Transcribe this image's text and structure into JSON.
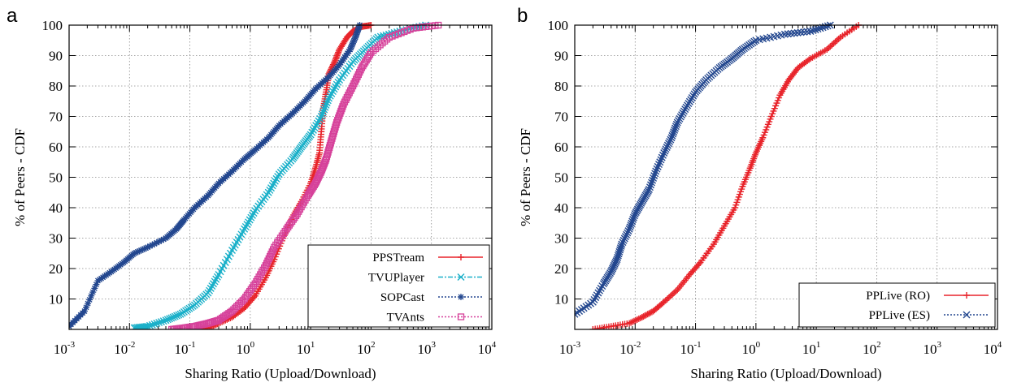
{
  "chart_data": [
    {
      "type": "line",
      "panel_letter": "a",
      "xlabel": "Sharing Ratio (Upload/Download)",
      "ylabel": "% of Peers - CDF",
      "x_scale": "log",
      "xlim": [
        0.001,
        10000
      ],
      "ylim": [
        0,
        100
      ],
      "x_tick_labels": [
        {
          "base": "10",
          "exp": "-3"
        },
        {
          "base": "10",
          "exp": "-2"
        },
        {
          "base": "10",
          "exp": "-1"
        },
        {
          "base": "10",
          "exp": "0"
        },
        {
          "base": "10",
          "exp": "1"
        },
        {
          "base": "10",
          "exp": "2"
        },
        {
          "base": "10",
          "exp": "3"
        },
        {
          "base": "10",
          "exp": "4"
        }
      ],
      "y_tick_labels": [
        "10",
        "20",
        "30",
        "40",
        "50",
        "60",
        "70",
        "80",
        "90",
        "100"
      ],
      "grid": true,
      "legend_position": "bottom-right",
      "series": [
        {
          "name": "PPSTream",
          "color": "#e8242b",
          "marker": "plus",
          "dash": "solid",
          "points": [
            [
              0.15,
              0
            ],
            [
              0.2,
              0.5
            ],
            [
              0.3,
              2
            ],
            [
              0.5,
              4
            ],
            [
              0.8,
              7
            ],
            [
              1.2,
              11
            ],
            [
              1.8,
              17
            ],
            [
              2.5,
              23
            ],
            [
              3.5,
              30
            ],
            [
              5,
              37
            ],
            [
              7,
              42
            ],
            [
              10,
              48
            ],
            [
              12,
              53
            ],
            [
              14,
              58
            ],
            [
              15,
              65
            ],
            [
              16,
              72
            ],
            [
              18,
              78
            ],
            [
              20,
              84
            ],
            [
              25,
              88
            ],
            [
              30,
              92
            ],
            [
              40,
              96
            ],
            [
              50,
              98
            ],
            [
              70,
              99.5
            ],
            [
              100,
              100
            ]
          ]
        },
        {
          "name": "TVUPlayer",
          "color": "#1ab0c9",
          "marker": "cross",
          "dash": "6,2,2,2",
          "points": [
            [
              0.012,
              0.5
            ],
            [
              0.02,
              1
            ],
            [
              0.04,
              3
            ],
            [
              0.07,
              5
            ],
            [
              0.12,
              8
            ],
            [
              0.2,
              12
            ],
            [
              0.3,
              18
            ],
            [
              0.5,
              26
            ],
            [
              0.8,
              33
            ],
            [
              1.2,
              39
            ],
            [
              2,
              45
            ],
            [
              3,
              51
            ],
            [
              5,
              56
            ],
            [
              7,
              60
            ],
            [
              10,
              64
            ],
            [
              15,
              70
            ],
            [
              20,
              76
            ],
            [
              30,
              82
            ],
            [
              50,
              88
            ],
            [
              80,
              92
            ],
            [
              130,
              96
            ],
            [
              300,
              98
            ],
            [
              800,
              100
            ]
          ]
        },
        {
          "name": "SOPCast",
          "color": "#23478f",
          "marker": "star",
          "dash": "2,2",
          "points": [
            [
              0.001,
              1
            ],
            [
              0.0018,
              6
            ],
            [
              0.003,
              16
            ],
            [
              0.005,
              19
            ],
            [
              0.008,
              22
            ],
            [
              0.012,
              25
            ],
            [
              0.02,
              27
            ],
            [
              0.04,
              30
            ],
            [
              0.06,
              33
            ],
            [
              0.08,
              36
            ],
            [
              0.12,
              40
            ],
            [
              0.2,
              44
            ],
            [
              0.3,
              48
            ],
            [
              0.5,
              52
            ],
            [
              0.8,
              56
            ],
            [
              1.2,
              59
            ],
            [
              2,
              63
            ],
            [
              3,
              67
            ],
            [
              5,
              71
            ],
            [
              8,
              75
            ],
            [
              12,
              79
            ],
            [
              20,
              83
            ],
            [
              30,
              87
            ],
            [
              45,
              92
            ],
            [
              55,
              96
            ],
            [
              65,
              100
            ]
          ]
        },
        {
          "name": "TVAnts",
          "color": "#d6419a",
          "marker": "square",
          "dash": "2,2",
          "points": [
            [
              0.05,
              0
            ],
            [
              0.08,
              0.5
            ],
            [
              0.12,
              1
            ],
            [
              0.2,
              2
            ],
            [
              0.3,
              3
            ],
            [
              0.5,
              6
            ],
            [
              0.8,
              10
            ],
            [
              1.2,
              15
            ],
            [
              1.8,
              21
            ],
            [
              2.5,
              27
            ],
            [
              4,
              33
            ],
            [
              6,
              38
            ],
            [
              9,
              44
            ],
            [
              12,
              48
            ],
            [
              15,
              52
            ],
            [
              18,
              56
            ],
            [
              22,
              62
            ],
            [
              27,
              68
            ],
            [
              35,
              74
            ],
            [
              50,
              80
            ],
            [
              70,
              86
            ],
            [
              100,
              91
            ],
            [
              200,
              96
            ],
            [
              500,
              99
            ],
            [
              1300,
              100
            ]
          ]
        }
      ]
    },
    {
      "type": "line",
      "panel_letter": "b",
      "xlabel": "Sharing Ratio (Upload/Download)",
      "ylabel": "% of Peers - CDF",
      "x_scale": "log",
      "xlim": [
        0.001,
        10000
      ],
      "ylim": [
        0,
        100
      ],
      "x_tick_labels": [
        {
          "base": "10",
          "exp": "-3"
        },
        {
          "base": "10",
          "exp": "-2"
        },
        {
          "base": "10",
          "exp": "-1"
        },
        {
          "base": "10",
          "exp": "0"
        },
        {
          "base": "10",
          "exp": "1"
        },
        {
          "base": "10",
          "exp": "2"
        },
        {
          "base": "10",
          "exp": "3"
        },
        {
          "base": "10",
          "exp": "4"
        }
      ],
      "y_tick_labels": [
        "10",
        "20",
        "30",
        "40",
        "50",
        "60",
        "70",
        "80",
        "90",
        "100"
      ],
      "grid": true,
      "legend_position": "bottom-right",
      "series": [
        {
          "name": "PPLive (RO)",
          "color": "#e8242b",
          "marker": "plus",
          "dash": "solid",
          "points": [
            [
              0.002,
              0
            ],
            [
              0.004,
              1
            ],
            [
              0.008,
              2
            ],
            [
              0.013,
              4
            ],
            [
              0.02,
              6
            ],
            [
              0.03,
              9
            ],
            [
              0.05,
              13
            ],
            [
              0.08,
              18
            ],
            [
              0.12,
              22
            ],
            [
              0.2,
              28
            ],
            [
              0.3,
              34
            ],
            [
              0.45,
              40
            ],
            [
              0.6,
              47
            ],
            [
              0.8,
              53
            ],
            [
              1,
              58
            ],
            [
              1.3,
              63
            ],
            [
              1.8,
              70
            ],
            [
              2.5,
              77
            ],
            [
              3.5,
              82
            ],
            [
              5,
              86
            ],
            [
              8,
              89
            ],
            [
              15,
              92
            ],
            [
              25,
              96
            ],
            [
              50,
              100
            ]
          ]
        },
        {
          "name": "PPLive (ES)",
          "color": "#23478f",
          "marker": "cross",
          "dash": "2,2",
          "points": [
            [
              0.001,
              5
            ],
            [
              0.002,
              9
            ],
            [
              0.003,
              15
            ],
            [
              0.004,
              19
            ],
            [
              0.005,
              23
            ],
            [
              0.006,
              28
            ],
            [
              0.008,
              33
            ],
            [
              0.01,
              38
            ],
            [
              0.013,
              42
            ],
            [
              0.017,
              46
            ],
            [
              0.022,
              52
            ],
            [
              0.03,
              58
            ],
            [
              0.04,
              63
            ],
            [
              0.05,
              68
            ],
            [
              0.07,
              73
            ],
            [
              0.1,
              78
            ],
            [
              0.15,
              82
            ],
            [
              0.25,
              86
            ],
            [
              0.4,
              89
            ],
            [
              0.6,
              92
            ],
            [
              1,
              95
            ],
            [
              3,
              97
            ],
            [
              8,
              98
            ],
            [
              17,
              100
            ]
          ]
        }
      ]
    }
  ]
}
